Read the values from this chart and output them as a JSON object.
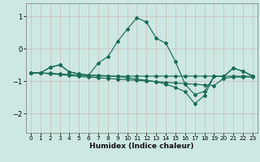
{
  "xlabel": "Humidex (Indice chaleur)",
  "bg_color": "#cde8e2",
  "grid_color": "#b8d8d2",
  "line_color": "#1a6b5a",
  "xlim": [
    -0.5,
    23.5
  ],
  "ylim": [
    -2.6,
    1.4
  ],
  "xticks": [
    0,
    1,
    2,
    3,
    4,
    5,
    6,
    7,
    8,
    9,
    10,
    11,
    12,
    13,
    14,
    15,
    16,
    17,
    18,
    19,
    20,
    21,
    22,
    23
  ],
  "yticks": [
    -2,
    -1,
    0,
    1
  ],
  "series": [
    {
      "x": [
        0,
        1,
        2,
        3,
        4,
        5,
        6,
        7,
        8,
        9,
        10,
        11,
        12,
        13,
        14,
        15,
        16,
        17,
        18,
        19,
        20,
        21,
        22,
        23
      ],
      "y": [
        -0.75,
        -0.75,
        -0.58,
        -0.5,
        -0.72,
        -0.78,
        -0.82,
        -0.44,
        -0.25,
        0.22,
        0.6,
        0.95,
        0.82,
        0.32,
        0.17,
        -0.4,
        -1.1,
        -1.42,
        -1.32,
        -0.86,
        -0.86,
        -0.6,
        -0.7,
        -0.84
      ]
    },
    {
      "x": [
        0,
        1,
        2,
        3,
        4,
        5,
        6,
        7,
        8,
        9,
        10,
        11,
        12,
        13,
        14,
        15,
        16,
        17,
        18,
        19,
        20,
        21,
        22,
        23
      ],
      "y": [
        -0.75,
        -0.75,
        -0.78,
        -0.8,
        -0.83,
        -0.86,
        -0.88,
        -0.9,
        -0.92,
        -0.94,
        -0.96,
        -0.98,
        -1.0,
        -1.02,
        -1.04,
        -1.06,
        -1.08,
        -1.1,
        -1.12,
        -1.14,
        -0.92,
        -0.88,
        -0.88,
        -0.88
      ]
    },
    {
      "x": [
        0,
        1,
        2,
        3,
        4,
        5,
        6,
        7,
        8,
        9,
        10,
        11,
        12,
        13,
        14,
        15,
        16,
        17,
        18,
        19,
        20,
        21,
        22,
        23
      ],
      "y": [
        -0.75,
        -0.75,
        -0.76,
        -0.78,
        -0.8,
        -0.82,
        -0.84,
        -0.85,
        -0.85,
        -0.85,
        -0.85,
        -0.85,
        -0.85,
        -0.85,
        -0.85,
        -0.85,
        -0.85,
        -0.85,
        -0.85,
        -0.85,
        -0.85,
        -0.85,
        -0.85,
        -0.85
      ]
    },
    {
      "x": [
        0,
        1,
        2,
        3,
        4,
        5,
        6,
        7,
        8,
        9,
        10,
        11,
        12,
        13,
        14,
        15,
        16,
        17,
        18,
        19,
        20,
        21,
        22,
        23
      ],
      "y": [
        -0.75,
        -0.75,
        -0.58,
        -0.5,
        -0.72,
        -0.78,
        -0.82,
        -0.82,
        -0.84,
        -0.86,
        -0.9,
        -0.94,
        -0.98,
        -1.02,
        -1.1,
        -1.2,
        -1.33,
        -1.7,
        -1.45,
        -0.86,
        -0.86,
        -0.6,
        -0.7,
        -0.84
      ]
    }
  ]
}
